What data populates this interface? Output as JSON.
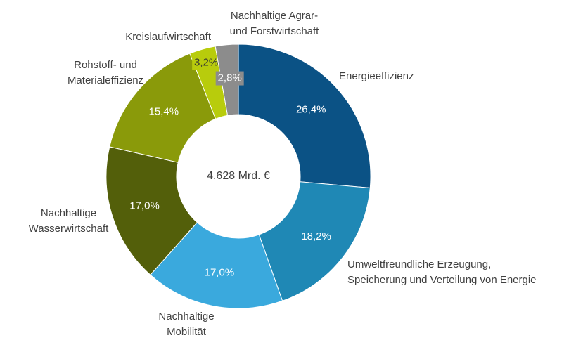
{
  "chart_data": {
    "type": "donut",
    "center_label": "4.628 Mrd. €",
    "categories": [
      "Energieeffizienz",
      "Umweltfreundliche Erzeugung,\nSpeicherung und Verteilung von Energie",
      "Nachhaltige\nMobilität",
      "Nachhaltige\nWasserwirtschaft",
      "Rohstoff- und\nMaterialeffizienz",
      "Kreislaufwirtschaft",
      "Nachhaltige Agrar-\nund Forstwirtschaft"
    ],
    "values": [
      26.4,
      18.2,
      17.0,
      17.0,
      15.4,
      3.2,
      2.8
    ],
    "value_labels": [
      "26,4%",
      "18,2%",
      "17,0%",
      "17,0%",
      "15,4%",
      "3,2%",
      "2,8%"
    ],
    "colors": [
      "#0b5285",
      "#1f88b5",
      "#3aa9dd",
      "#535f0a",
      "#8a9a0a",
      "#b8cc0c",
      "#8c8c8c"
    ]
  }
}
